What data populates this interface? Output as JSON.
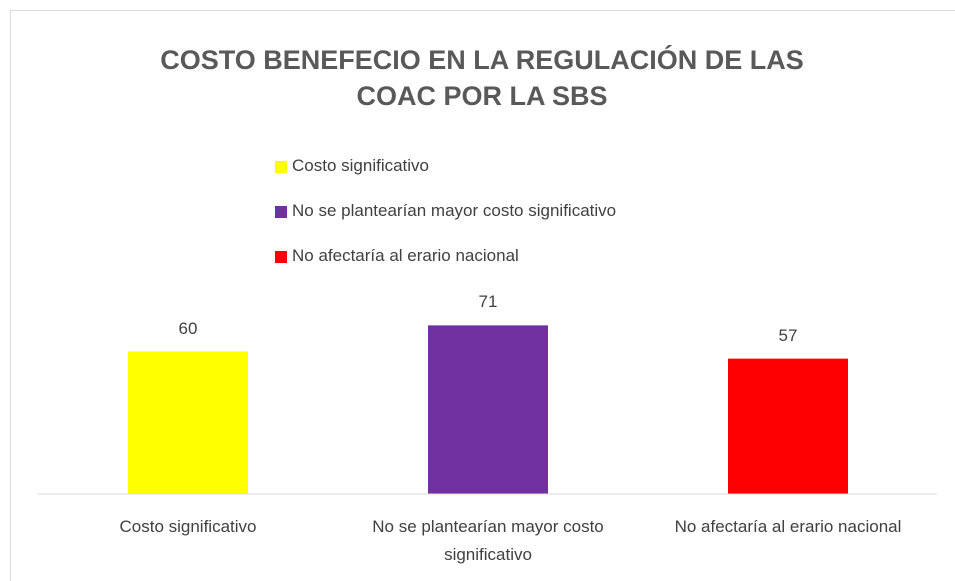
{
  "chart_data": {
    "type": "bar",
    "title": "COSTO BENEFECIO EN LA REGULACIÓN DE LAS COAC POR LA SBS",
    "categories": [
      "Costo significativo",
      "No se plantearían mayor costo significativo",
      "No afectaría al erario nacional"
    ],
    "values": [
      60,
      71,
      57
    ],
    "colors": [
      "#ffff00",
      "#7030a0",
      "#ff0000"
    ],
    "ylim": [
      0,
      80
    ],
    "legend": "top"
  }
}
